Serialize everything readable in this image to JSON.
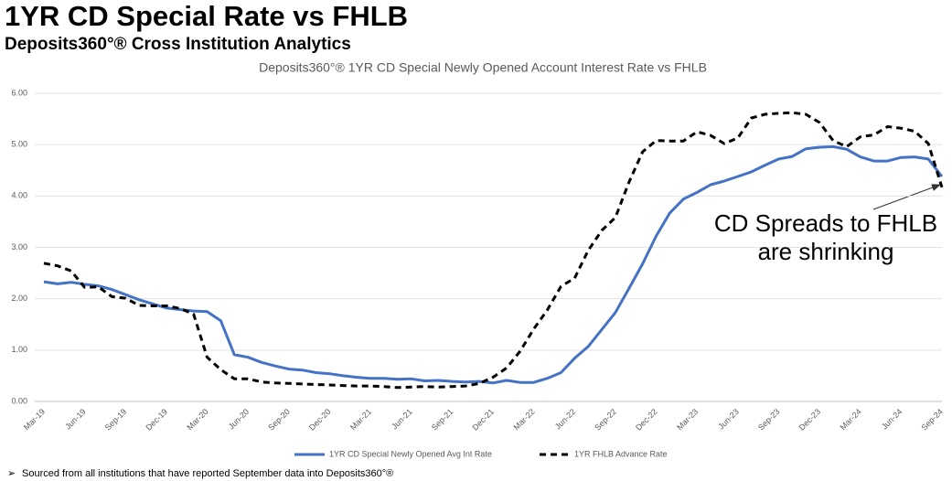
{
  "header": {
    "title": "1YR CD Special Rate vs FHLB",
    "subtitle": "Deposits360°® Cross Institution Analytics"
  },
  "footnote": "Sourced from all institutions that have reported September data into Deposits360°®",
  "chart_data": {
    "type": "line",
    "title": "Deposits360°® 1YR CD Special Newly Opened Account Interest Rate vs FHLB",
    "categories": [
      "Mar-19",
      null,
      null,
      "Jun-19",
      null,
      null,
      "Sep-19",
      null,
      null,
      "Dec-19",
      null,
      null,
      "Mar-20",
      null,
      null,
      "Jun-20",
      null,
      null,
      "Sep-20",
      null,
      null,
      "Dec-20",
      null,
      null,
      "Mar-21",
      null,
      null,
      "Jun-21",
      null,
      null,
      "Sep-21",
      null,
      null,
      "Dec-21",
      null,
      null,
      "Mar-22",
      null,
      null,
      "Jun-22",
      null,
      null,
      "Sep-22",
      null,
      null,
      "Dec-22",
      null,
      null,
      "Mar-23",
      null,
      null,
      "Jun-23",
      null,
      null,
      "Sep-23",
      null,
      null,
      "Dec-23",
      null,
      null,
      "Mar-24",
      null,
      null,
      "Jun-24",
      null,
      null,
      "Sep-24"
    ],
    "series": [
      {
        "name": "1YR CD Special Newly Opened Avg Int Rate",
        "color": "#4472c4",
        "dashed": false,
        "values": [
          2.33,
          2.29,
          2.32,
          2.28,
          2.25,
          2.18,
          2.08,
          1.98,
          1.9,
          1.82,
          1.79,
          1.76,
          1.75,
          1.57,
          0.91,
          0.86,
          0.76,
          0.69,
          0.63,
          0.61,
          0.56,
          0.54,
          0.5,
          0.47,
          0.45,
          0.45,
          0.43,
          0.44,
          0.4,
          0.41,
          0.39,
          0.38,
          0.39,
          0.36,
          0.41,
          0.37,
          0.37,
          0.45,
          0.56,
          0.84,
          1.07,
          1.4,
          1.73,
          2.2,
          2.68,
          3.22,
          3.67,
          3.94,
          4.07,
          4.22,
          4.29,
          4.38,
          4.47,
          4.6,
          4.72,
          4.77,
          4.92,
          4.95,
          4.96,
          4.91,
          4.76,
          4.68,
          4.68,
          4.75,
          4.76,
          4.72,
          4.38
        ]
      },
      {
        "name": "1YR FHLB Advance Rate",
        "color": "#000000",
        "dashed": true,
        "values": [
          2.69,
          2.64,
          2.54,
          2.22,
          2.23,
          2.04,
          2.01,
          1.87,
          1.86,
          1.86,
          1.81,
          1.7,
          0.86,
          0.62,
          0.44,
          0.44,
          0.38,
          0.36,
          0.35,
          0.34,
          0.33,
          0.32,
          0.31,
          0.3,
          0.3,
          0.29,
          0.27,
          0.28,
          0.29,
          0.28,
          0.29,
          0.3,
          0.35,
          0.47,
          0.65,
          0.98,
          1.41,
          1.78,
          2.24,
          2.4,
          2.94,
          3.33,
          3.58,
          4.27,
          4.86,
          5.08,
          5.07,
          5.07,
          5.25,
          5.18,
          5.02,
          5.13,
          5.52,
          5.59,
          5.61,
          5.62,
          5.59,
          5.43,
          5.08,
          4.96,
          5.15,
          5.19,
          5.35,
          5.32,
          5.26,
          5.02,
          4.17
        ]
      }
    ],
    "ylim": [
      0,
      6
    ],
    "yticks": [
      {
        "value": 0,
        "label": "0.00"
      },
      {
        "value": 1,
        "label": "1.00"
      },
      {
        "value": 2,
        "label": "2.00"
      },
      {
        "value": 3,
        "label": "3.00"
      },
      {
        "value": 4,
        "label": "4.00"
      },
      {
        "value": 5,
        "label": "5.00"
      },
      {
        "value": 6,
        "label": "6.00"
      }
    ],
    "grid": true,
    "legend": "bottom",
    "annotation": [
      "CD Spreads to FHLB",
      "are shrinking"
    ]
  }
}
